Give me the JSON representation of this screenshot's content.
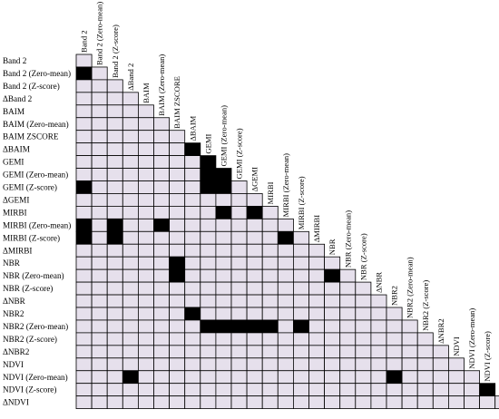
{
  "labels": [
    "Band 2",
    "Band 2 (Zero-mean)",
    "Band 2 (Z-score)",
    "ΔBand 2",
    "BAIM",
    "BAIM (Zero-mean)",
    "BAIM ZSCORE",
    "ΔBAIM",
    "GEMI",
    "GEMI (Zero-mean)",
    "GEMI (Z-score)",
    "ΔGEMI",
    "MIRBI",
    "MIRBI (Zero-mean)",
    "MIRBI (Z-score)",
    "ΔMIRBI",
    "NBR",
    "NBR (Zero-mean)",
    "NBR (Z-score)",
    "ΔNBR",
    "NBR2",
    "NBR2 (Zero-mean)",
    "NBR2 (Z-score)",
    "ΔNBR2",
    "NDVI",
    "NDVI (Zero-mean)",
    "NDVI (Z-score)",
    "ΔNDVI"
  ],
  "cells": [
    [
      1,
      0,
      1
    ],
    [
      7,
      7,
      1
    ],
    [
      8,
      8,
      1
    ],
    [
      9,
      8,
      1
    ],
    [
      9,
      9,
      1
    ],
    [
      10,
      0,
      1
    ],
    [
      10,
      8,
      1
    ],
    [
      10,
      9,
      1
    ],
    [
      12,
      9,
      1
    ],
    [
      12,
      11,
      1
    ],
    [
      13,
      0,
      1
    ],
    [
      13,
      2,
      1
    ],
    [
      13,
      5,
      1
    ],
    [
      14,
      0,
      1
    ],
    [
      14,
      2,
      1
    ],
    [
      14,
      13,
      1
    ],
    [
      16,
      6,
      1
    ],
    [
      17,
      6,
      1
    ],
    [
      17,
      16,
      1
    ],
    [
      20,
      7,
      1
    ],
    [
      21,
      8,
      1
    ],
    [
      21,
      9,
      1
    ],
    [
      21,
      10,
      1
    ],
    [
      21,
      11,
      1
    ],
    [
      21,
      12,
      1
    ],
    [
      21,
      14,
      1
    ],
    [
      25,
      3,
      1
    ],
    [
      25,
      20,
      1
    ],
    [
      26,
      26,
      1
    ]
  ],
  "cell_color": "#e6e0ec",
  "marked_color": "#000000",
  "grid_color": "#000000"
}
